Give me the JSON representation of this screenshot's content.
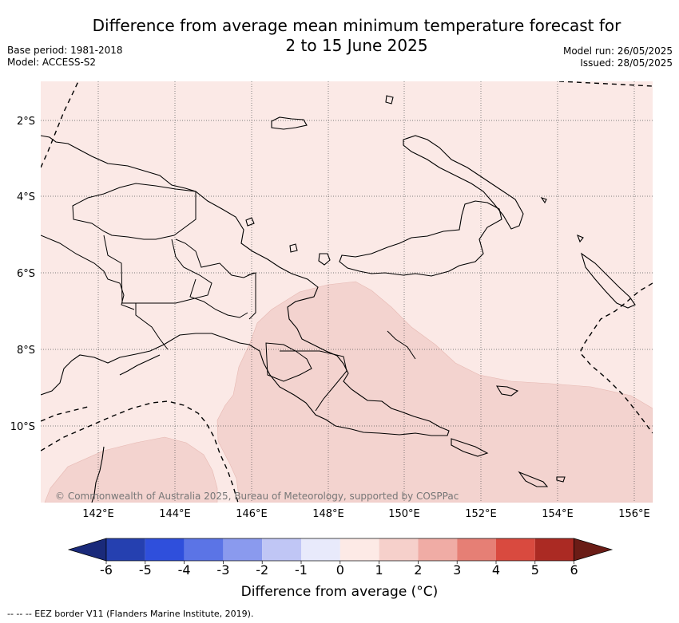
{
  "title": {
    "line1": "Difference from average mean minimum temperature forecast for",
    "line2": "2 to 15 June 2025"
  },
  "meta": {
    "base_period": "Base period: 1981-2018",
    "model": "Model: ACCESS-S2",
    "model_run": "Model run: 26/05/2025",
    "issued": "Issued: 28/05/2025"
  },
  "map": {
    "region": "Papua New Guinea",
    "lat_labels": [
      "2°S",
      "4°S",
      "6°S",
      "8°S",
      "10°S"
    ],
    "lon_labels": [
      "142°E",
      "144°E",
      "146°E",
      "148°E",
      "150°E",
      "152°E",
      "154°E",
      "156°E"
    ],
    "copyright": "© Commonwealth of Australia 2025, Bureau of Meteorology, supported by COSPPac",
    "colors": {
      "light": "#fbe9e6",
      "medium": "#f3d3cf",
      "land_outline": "#000000",
      "grid": "#555555"
    }
  },
  "colorbar": {
    "tick_labels": [
      "-6",
      "-5",
      "-4",
      "-3",
      "-2",
      "-1",
      "0",
      "1",
      "2",
      "3",
      "4",
      "5",
      "6"
    ],
    "colors": [
      "#1a2a7a",
      "#2540b0",
      "#2f4fdc",
      "#5b74e6",
      "#8a9aee",
      "#c0c6f5",
      "#e8eafb",
      "#fdeae6",
      "#f6d0cb",
      "#f0aca5",
      "#e67f75",
      "#d94a3f",
      "#ab2a23",
      "#6a1c16"
    ],
    "title": "Difference from average (°C)"
  },
  "footnote": "-- -- -- EEZ border V11 (Flanders Marine Institute, 2019)."
}
